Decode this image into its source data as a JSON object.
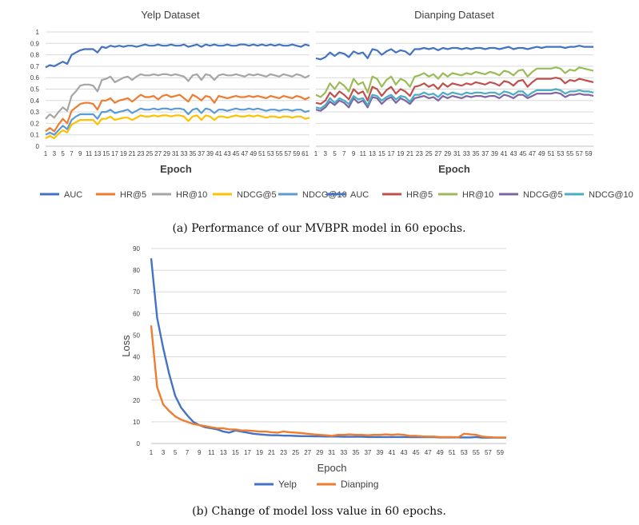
{
  "panel_a": {
    "caption": "(a) Performance of our MVBPR model in 60 epochs.",
    "charts": [
      {
        "title": "Yelp Dataset",
        "xlabel": "Epoch",
        "ylim": [
          0,
          1
        ],
        "yticks": [
          "0",
          "0.1",
          "0.2",
          "0.3",
          "0.4",
          "0.5",
          "0.6",
          "0.7",
          "0.8",
          "0.9",
          "1"
        ],
        "xticks": [
          "1",
          "3",
          "5",
          "7",
          "9",
          "11",
          "13",
          "15",
          "17",
          "19",
          "21",
          "23",
          "25",
          "27",
          "29",
          "31",
          "33",
          "35",
          "37",
          "39",
          "41",
          "43",
          "45",
          "47",
          "49",
          "51",
          "53",
          "55",
          "57",
          "59",
          "61"
        ],
        "legend": [
          {
            "name": "AUC",
            "color": "#4472C4"
          },
          {
            "name": "HR@5",
            "color": "#ED7D31"
          },
          {
            "name": "HR@10",
            "color": "#A5A5A5"
          },
          {
            "name": "NDCG@5",
            "color": "#FFC000"
          },
          {
            "name": "NDCG@10",
            "color": "#5B9BD5"
          }
        ]
      },
      {
        "title": "Dianping Dataset",
        "xlabel": "Epoch",
        "ylim": [
          0,
          1
        ],
        "xticks": [
          "1",
          "3",
          "5",
          "7",
          "9",
          "11",
          "13",
          "15",
          "17",
          "19",
          "21",
          "23",
          "25",
          "27",
          "29",
          "31",
          "33",
          "35",
          "37",
          "39",
          "41",
          "43",
          "45",
          "47",
          "49",
          "51",
          "53",
          "55",
          "57",
          "59"
        ],
        "legend": [
          {
            "name": "AUC",
            "color": "#4472C4"
          },
          {
            "name": "HR@5",
            "color": "#C0504D"
          },
          {
            "name": "HR@10",
            "color": "#9BBB59"
          },
          {
            "name": "NDCG@5",
            "color": "#8064A2"
          },
          {
            "name": "NDCG@10",
            "color": "#4BACC6"
          }
        ]
      }
    ]
  },
  "panel_b": {
    "caption": "(b) Change of model loss value in 60 epochs.",
    "xlabel": "Epoch",
    "ylabel": "Loss",
    "ylim": [
      0,
      90
    ],
    "yticks": [
      "0",
      "10",
      "20",
      "30",
      "40",
      "50",
      "60",
      "70",
      "80",
      "90"
    ],
    "xticks": [
      "1",
      "3",
      "5",
      "7",
      "9",
      "11",
      "13",
      "15",
      "17",
      "19",
      "21",
      "23",
      "25",
      "27",
      "29",
      "31",
      "33",
      "35",
      "37",
      "39",
      "41",
      "43",
      "45",
      "47",
      "49",
      "51",
      "53",
      "55",
      "57",
      "59"
    ],
    "legend": [
      {
        "name": "Yelp",
        "color": "#4472C4"
      },
      {
        "name": "Dianping",
        "color": "#ED7D31"
      }
    ]
  },
  "chart_data": [
    {
      "type": "line",
      "title": "Yelp Dataset",
      "xlabel": "Epoch",
      "ylabel": "",
      "ylim": [
        0,
        1
      ],
      "x_range": [
        1,
        62
      ],
      "series": [
        {
          "name": "AUC",
          "color": "#4472C4",
          "values": [
            0.69,
            0.71,
            0.7,
            0.72,
            0.74,
            0.72,
            0.8,
            0.82,
            0.84,
            0.85,
            0.85,
            0.85,
            0.82,
            0.87,
            0.86,
            0.88,
            0.87,
            0.88,
            0.87,
            0.88,
            0.88,
            0.87,
            0.88,
            0.89,
            0.88,
            0.88,
            0.89,
            0.88,
            0.88,
            0.89,
            0.88,
            0.88,
            0.89,
            0.87,
            0.88,
            0.89,
            0.87,
            0.89,
            0.88,
            0.89,
            0.88,
            0.88,
            0.89,
            0.88,
            0.88,
            0.89,
            0.89,
            0.88,
            0.89,
            0.88,
            0.89,
            0.88,
            0.89,
            0.88,
            0.89,
            0.88,
            0.88,
            0.89,
            0.88,
            0.87,
            0.89,
            0.88
          ]
        },
        {
          "name": "HR@5",
          "color": "#ED7D31",
          "values": [
            0.13,
            0.16,
            0.13,
            0.19,
            0.24,
            0.2,
            0.31,
            0.34,
            0.37,
            0.38,
            0.38,
            0.37,
            0.32,
            0.4,
            0.4,
            0.42,
            0.38,
            0.4,
            0.41,
            0.42,
            0.39,
            0.42,
            0.45,
            0.43,
            0.43,
            0.44,
            0.41,
            0.44,
            0.45,
            0.43,
            0.44,
            0.45,
            0.42,
            0.39,
            0.45,
            0.43,
            0.4,
            0.44,
            0.43,
            0.38,
            0.44,
            0.43,
            0.42,
            0.43,
            0.44,
            0.43,
            0.43,
            0.44,
            0.43,
            0.44,
            0.43,
            0.42,
            0.44,
            0.43,
            0.42,
            0.44,
            0.43,
            0.42,
            0.44,
            0.43,
            0.41,
            0.43
          ]
        },
        {
          "name": "HR@10",
          "color": "#A5A5A5",
          "values": [
            0.24,
            0.28,
            0.25,
            0.3,
            0.34,
            0.31,
            0.44,
            0.48,
            0.53,
            0.54,
            0.54,
            0.53,
            0.48,
            0.58,
            0.59,
            0.61,
            0.56,
            0.58,
            0.6,
            0.61,
            0.58,
            0.61,
            0.63,
            0.62,
            0.62,
            0.63,
            0.62,
            0.63,
            0.63,
            0.62,
            0.63,
            0.62,
            0.61,
            0.57,
            0.62,
            0.63,
            0.58,
            0.63,
            0.62,
            0.58,
            0.62,
            0.63,
            0.62,
            0.62,
            0.63,
            0.62,
            0.61,
            0.63,
            0.62,
            0.63,
            0.62,
            0.61,
            0.63,
            0.62,
            0.61,
            0.63,
            0.62,
            0.61,
            0.63,
            0.62,
            0.6,
            0.62
          ]
        },
        {
          "name": "NDCG@5",
          "color": "#FFC000",
          "values": [
            0.07,
            0.09,
            0.07,
            0.11,
            0.14,
            0.12,
            0.19,
            0.21,
            0.23,
            0.23,
            0.23,
            0.23,
            0.19,
            0.24,
            0.24,
            0.26,
            0.23,
            0.24,
            0.25,
            0.25,
            0.23,
            0.25,
            0.27,
            0.26,
            0.26,
            0.27,
            0.26,
            0.27,
            0.27,
            0.26,
            0.27,
            0.27,
            0.26,
            0.22,
            0.26,
            0.27,
            0.23,
            0.27,
            0.26,
            0.23,
            0.26,
            0.26,
            0.25,
            0.26,
            0.27,
            0.26,
            0.26,
            0.27,
            0.26,
            0.27,
            0.26,
            0.25,
            0.26,
            0.26,
            0.25,
            0.26,
            0.26,
            0.25,
            0.26,
            0.26,
            0.24,
            0.25
          ]
        },
        {
          "name": "NDCG@10",
          "color": "#5B9BD5",
          "values": [
            0.1,
            0.12,
            0.1,
            0.14,
            0.18,
            0.15,
            0.23,
            0.26,
            0.28,
            0.28,
            0.28,
            0.28,
            0.24,
            0.3,
            0.3,
            0.32,
            0.29,
            0.3,
            0.31,
            0.32,
            0.29,
            0.31,
            0.33,
            0.32,
            0.32,
            0.33,
            0.32,
            0.33,
            0.33,
            0.32,
            0.33,
            0.33,
            0.32,
            0.28,
            0.32,
            0.33,
            0.29,
            0.33,
            0.32,
            0.29,
            0.32,
            0.32,
            0.31,
            0.32,
            0.33,
            0.32,
            0.32,
            0.33,
            0.32,
            0.33,
            0.32,
            0.31,
            0.32,
            0.32,
            0.31,
            0.32,
            0.32,
            0.31,
            0.32,
            0.32,
            0.3,
            0.31
          ]
        }
      ]
    },
    {
      "type": "line",
      "title": "Dianping Dataset",
      "xlabel": "Epoch",
      "ylabel": "",
      "ylim": [
        0,
        1
      ],
      "x_range": [
        1,
        60
      ],
      "series": [
        {
          "name": "AUC",
          "color": "#4472C4",
          "values": [
            0.77,
            0.76,
            0.78,
            0.82,
            0.79,
            0.82,
            0.81,
            0.78,
            0.83,
            0.81,
            0.82,
            0.77,
            0.85,
            0.84,
            0.8,
            0.83,
            0.85,
            0.82,
            0.84,
            0.83,
            0.8,
            0.85,
            0.85,
            0.86,
            0.85,
            0.86,
            0.84,
            0.86,
            0.85,
            0.86,
            0.86,
            0.85,
            0.86,
            0.85,
            0.86,
            0.86,
            0.85,
            0.86,
            0.86,
            0.85,
            0.86,
            0.87,
            0.85,
            0.86,
            0.86,
            0.85,
            0.86,
            0.87,
            0.86,
            0.87,
            0.87,
            0.87,
            0.87,
            0.86,
            0.87,
            0.87,
            0.88,
            0.87,
            0.87,
            0.87
          ]
        },
        {
          "name": "HR@5",
          "color": "#C0504D",
          "values": [
            0.38,
            0.37,
            0.4,
            0.47,
            0.43,
            0.48,
            0.45,
            0.41,
            0.5,
            0.46,
            0.48,
            0.4,
            0.52,
            0.5,
            0.44,
            0.49,
            0.52,
            0.46,
            0.5,
            0.48,
            0.44,
            0.52,
            0.53,
            0.55,
            0.52,
            0.54,
            0.5,
            0.55,
            0.52,
            0.55,
            0.54,
            0.53,
            0.55,
            0.54,
            0.56,
            0.55,
            0.54,
            0.56,
            0.55,
            0.53,
            0.57,
            0.56,
            0.53,
            0.57,
            0.58,
            0.52,
            0.56,
            0.59,
            0.59,
            0.59,
            0.59,
            0.6,
            0.59,
            0.55,
            0.58,
            0.57,
            0.59,
            0.58,
            0.57,
            0.56
          ]
        },
        {
          "name": "HR@10",
          "color": "#9BBB59",
          "values": [
            0.45,
            0.43,
            0.47,
            0.55,
            0.5,
            0.56,
            0.53,
            0.48,
            0.59,
            0.54,
            0.56,
            0.47,
            0.61,
            0.59,
            0.52,
            0.58,
            0.61,
            0.54,
            0.59,
            0.57,
            0.52,
            0.61,
            0.62,
            0.64,
            0.61,
            0.63,
            0.59,
            0.64,
            0.61,
            0.64,
            0.63,
            0.62,
            0.64,
            0.63,
            0.65,
            0.64,
            0.63,
            0.65,
            0.64,
            0.62,
            0.66,
            0.65,
            0.62,
            0.66,
            0.67,
            0.61,
            0.65,
            0.68,
            0.68,
            0.68,
            0.68,
            0.69,
            0.68,
            0.64,
            0.67,
            0.66,
            0.69,
            0.68,
            0.67,
            0.66
          ]
        },
        {
          "name": "NDCG@5",
          "color": "#8064A2",
          "values": [
            0.32,
            0.31,
            0.34,
            0.39,
            0.36,
            0.4,
            0.38,
            0.34,
            0.42,
            0.38,
            0.4,
            0.34,
            0.43,
            0.42,
            0.37,
            0.41,
            0.43,
            0.38,
            0.42,
            0.4,
            0.37,
            0.42,
            0.43,
            0.44,
            0.42,
            0.43,
            0.4,
            0.44,
            0.42,
            0.44,
            0.43,
            0.42,
            0.44,
            0.43,
            0.44,
            0.44,
            0.43,
            0.44,
            0.44,
            0.42,
            0.45,
            0.44,
            0.42,
            0.45,
            0.45,
            0.42,
            0.44,
            0.46,
            0.46,
            0.46,
            0.46,
            0.47,
            0.46,
            0.43,
            0.45,
            0.45,
            0.46,
            0.45,
            0.45,
            0.44
          ]
        },
        {
          "name": "NDCG@10",
          "color": "#4BACC6",
          "values": [
            0.34,
            0.33,
            0.36,
            0.42,
            0.38,
            0.42,
            0.4,
            0.37,
            0.44,
            0.41,
            0.42,
            0.36,
            0.45,
            0.44,
            0.4,
            0.43,
            0.45,
            0.41,
            0.44,
            0.43,
            0.39,
            0.45,
            0.45,
            0.47,
            0.45,
            0.46,
            0.43,
            0.47,
            0.45,
            0.47,
            0.46,
            0.45,
            0.47,
            0.46,
            0.47,
            0.47,
            0.46,
            0.47,
            0.47,
            0.45,
            0.48,
            0.47,
            0.45,
            0.48,
            0.48,
            0.44,
            0.47,
            0.49,
            0.49,
            0.49,
            0.49,
            0.5,
            0.49,
            0.46,
            0.48,
            0.48,
            0.49,
            0.48,
            0.48,
            0.47
          ]
        }
      ]
    },
    {
      "type": "line",
      "title": "",
      "xlabel": "Epoch",
      "ylabel": "Loss",
      "ylim": [
        0,
        90
      ],
      "x_range": [
        1,
        60
      ],
      "series": [
        {
          "name": "Yelp",
          "color": "#4472C4",
          "values": [
            85.5,
            58,
            44,
            32,
            22,
            16.5,
            13,
            10,
            8.5,
            7.5,
            7,
            6.5,
            5.5,
            5,
            6,
            5.5,
            5,
            4.5,
            4.2,
            4,
            3.8,
            3.8,
            3.6,
            3.6,
            3.5,
            3.4,
            3.4,
            3.3,
            3.3,
            3.2,
            3.2,
            3.2,
            3.1,
            3.1,
            3.1,
            3.1,
            3.0,
            3.0,
            3.0,
            3.0,
            3.0,
            3.0,
            3.0,
            2.9,
            2.9,
            2.9,
            2.9,
            2.9,
            2.8,
            2.8,
            2.8,
            2.8,
            2.8,
            2.8,
            3.0,
            2.7,
            2.7,
            2.7,
            2.7,
            2.7
          ]
        },
        {
          "name": "Dianping",
          "color": "#ED7D31",
          "values": [
            54.5,
            26,
            18,
            15,
            12.5,
            11,
            10,
            9,
            8.5,
            8,
            7.5,
            7,
            7,
            6.5,
            6.5,
            6,
            6,
            5.8,
            5.5,
            5.5,
            5.2,
            5,
            5.5,
            5.2,
            5,
            4.8,
            4.5,
            4.2,
            4,
            3.8,
            3.5,
            4,
            4,
            4.2,
            4,
            4,
            3.8,
            4,
            4,
            4.2,
            4,
            4.2,
            4,
            3.5,
            3.5,
            3.3,
            3.2,
            3.2,
            3,
            3,
            3,
            2.8,
            4.5,
            4.2,
            4,
            3.2,
            3,
            2.8,
            2.8,
            2.8
          ]
        }
      ]
    }
  ]
}
